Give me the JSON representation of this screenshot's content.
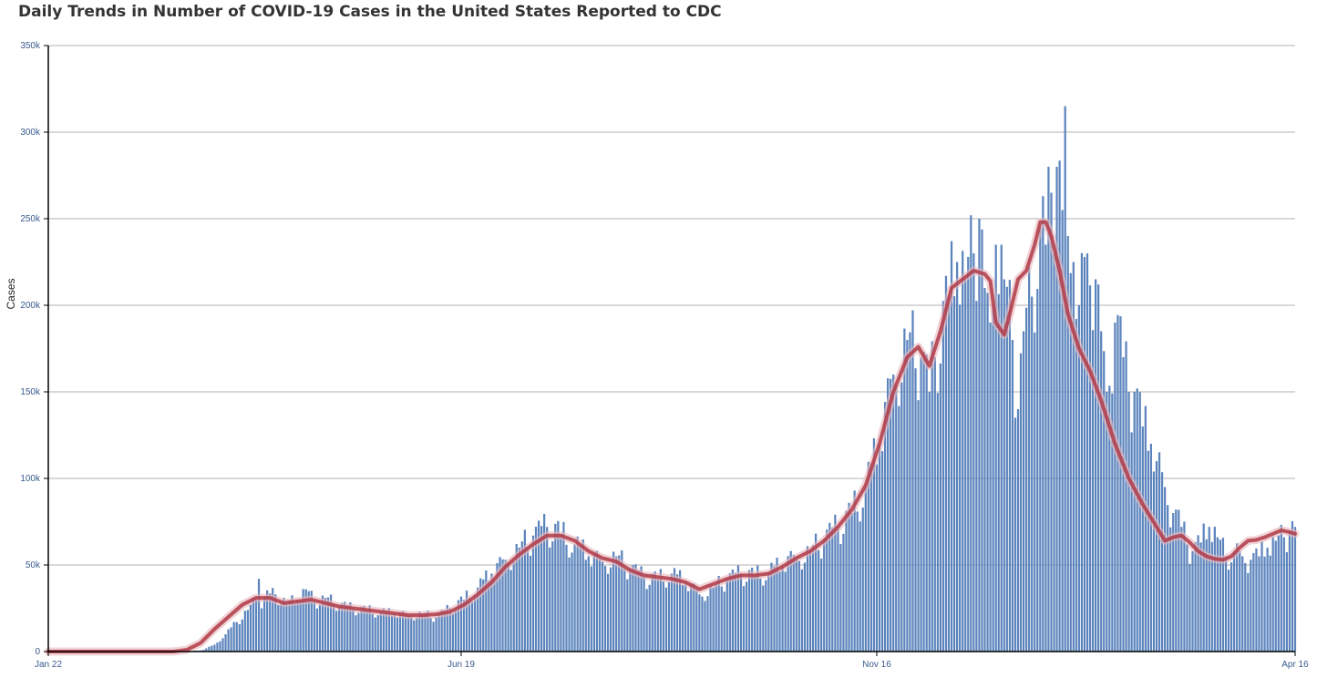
{
  "chart_data": {
    "type": "bar",
    "title": "Daily Trends in Number of COVID-19 Cases in the United States Reported to CDC",
    "ylabel": "Cases",
    "xlabel": "",
    "ylim": [
      0,
      350000
    ],
    "y_ticks": [
      {
        "value": 0,
        "label": "0"
      },
      {
        "value": 50000,
        "label": "50k"
      },
      {
        "value": 100000,
        "label": "100k"
      },
      {
        "value": 150000,
        "label": "150k"
      },
      {
        "value": 200000,
        "label": "200k"
      },
      {
        "value": 250000,
        "label": "250k"
      },
      {
        "value": 300000,
        "label": "300k"
      },
      {
        "value": 350000,
        "label": "350k"
      }
    ],
    "x_ticks": [
      {
        "day": 0,
        "label": "Jan 22"
      },
      {
        "day": 149,
        "label": "Jun 19"
      },
      {
        "day": 299,
        "label": "Nov 16"
      },
      {
        "day": 450,
        "label": "Apr 16"
      }
    ],
    "x_range_days": [
      0,
      450
    ],
    "grid": true,
    "bar_color": "#5b84bd",
    "line_color": "#b03a48",
    "series": [
      {
        "name": "",
        "kind": "bar"
      },
      {
        "name": "",
        "kind": "line"
      }
    ],
    "daily_anchor_points": [
      [
        0,
        0
      ],
      [
        40,
        0
      ],
      [
        52,
        200
      ],
      [
        56,
        1000
      ],
      [
        60,
        4000
      ],
      [
        64,
        10000
      ],
      [
        68,
        17000
      ],
      [
        72,
        24000
      ],
      [
        75,
        30000
      ],
      [
        76,
        42000
      ],
      [
        77,
        25000
      ],
      [
        78,
        32000
      ],
      [
        82,
        33000
      ],
      [
        86,
        28000
      ],
      [
        90,
        30000
      ],
      [
        93,
        36000
      ],
      [
        96,
        29000
      ],
      [
        100,
        31000
      ],
      [
        105,
        27000
      ],
      [
        110,
        25000
      ],
      [
        115,
        24000
      ],
      [
        120,
        23000
      ],
      [
        125,
        22000
      ],
      [
        130,
        21000
      ],
      [
        135,
        22000
      ],
      [
        140,
        20000
      ],
      [
        145,
        25000
      ],
      [
        150,
        30000
      ],
      [
        155,
        37000
      ],
      [
        160,
        45000
      ],
      [
        165,
        53000
      ],
      [
        170,
        60000
      ],
      [
        175,
        67000
      ],
      [
        180,
        72000
      ],
      [
        185,
        68000
      ],
      [
        190,
        62000
      ],
      [
        195,
        55000
      ],
      [
        200,
        52000
      ],
      [
        205,
        55000
      ],
      [
        210,
        48000
      ],
      [
        215,
        43000
      ],
      [
        220,
        42000
      ],
      [
        225,
        45000
      ],
      [
        230,
        40000
      ],
      [
        235,
        33000
      ],
      [
        240,
        37000
      ],
      [
        245,
        42000
      ],
      [
        250,
        45000
      ],
      [
        255,
        44000
      ],
      [
        260,
        46000
      ],
      [
        265,
        50000
      ],
      [
        270,
        55000
      ],
      [
        275,
        58000
      ],
      [
        280,
        65000
      ],
      [
        285,
        72000
      ],
      [
        290,
        80000
      ],
      [
        295,
        95000
      ],
      [
        300,
        120000
      ],
      [
        305,
        160000
      ],
      [
        310,
        180000
      ],
      [
        315,
        170000
      ],
      [
        318,
        150000
      ],
      [
        320,
        170000
      ],
      [
        325,
        205000
      ],
      [
        328,
        225000
      ],
      [
        331,
        215000
      ],
      [
        334,
        230000
      ],
      [
        336,
        250000
      ],
      [
        338,
        210000
      ],
      [
        340,
        190000
      ],
      [
        342,
        235000
      ],
      [
        345,
        215000
      ],
      [
        348,
        180000
      ],
      [
        350,
        140000
      ],
      [
        352,
        185000
      ],
      [
        355,
        205000
      ],
      [
        358,
        245000
      ],
      [
        360,
        235000
      ],
      [
        362,
        265000
      ],
      [
        364,
        280000
      ],
      [
        366,
        255000
      ],
      [
        367,
        315000
      ],
      [
        368,
        240000
      ],
      [
        370,
        225000
      ],
      [
        372,
        200000
      ],
      [
        375,
        230000
      ],
      [
        378,
        215000
      ],
      [
        380,
        185000
      ],
      [
        382,
        150000
      ],
      [
        385,
        190000
      ],
      [
        388,
        170000
      ],
      [
        390,
        150000
      ],
      [
        392,
        150000
      ],
      [
        395,
        130000
      ],
      [
        398,
        120000
      ],
      [
        400,
        110000
      ],
      [
        403,
        95000
      ],
      [
        406,
        80000
      ],
      [
        409,
        72000
      ],
      [
        411,
        62000
      ],
      [
        413,
        58000
      ],
      [
        416,
        63000
      ],
      [
        419,
        72000
      ],
      [
        422,
        66000
      ],
      [
        425,
        55000
      ],
      [
        428,
        58000
      ],
      [
        431,
        55000
      ],
      [
        434,
        53000
      ],
      [
        437,
        55000
      ],
      [
        440,
        60000
      ],
      [
        443,
        64000
      ],
      [
        446,
        66000
      ],
      [
        448,
        70000
      ],
      [
        450,
        72000
      ]
    ],
    "average_anchor_points": [
      [
        0,
        0
      ],
      [
        45,
        0
      ],
      [
        50,
        1000
      ],
      [
        55,
        5000
      ],
      [
        60,
        13000
      ],
      [
        65,
        20000
      ],
      [
        70,
        27000
      ],
      [
        75,
        31000
      ],
      [
        80,
        31000
      ],
      [
        85,
        28000
      ],
      [
        90,
        29000
      ],
      [
        95,
        30000
      ],
      [
        100,
        28000
      ],
      [
        105,
        26000
      ],
      [
        110,
        25000
      ],
      [
        115,
        24000
      ],
      [
        120,
        23000
      ],
      [
        125,
        22000
      ],
      [
        130,
        21000
      ],
      [
        135,
        21000
      ],
      [
        140,
        21500
      ],
      [
        145,
        23000
      ],
      [
        150,
        27000
      ],
      [
        155,
        33000
      ],
      [
        160,
        40000
      ],
      [
        165,
        49000
      ],
      [
        170,
        56000
      ],
      [
        175,
        62000
      ],
      [
        180,
        67000
      ],
      [
        185,
        67000
      ],
      [
        190,
        64000
      ],
      [
        195,
        58000
      ],
      [
        200,
        54000
      ],
      [
        205,
        52000
      ],
      [
        210,
        47000
      ],
      [
        215,
        44000
      ],
      [
        220,
        43000
      ],
      [
        225,
        42000
      ],
      [
        230,
        40000
      ],
      [
        235,
        36000
      ],
      [
        240,
        39000
      ],
      [
        245,
        42000
      ],
      [
        250,
        44000
      ],
      [
        255,
        44000
      ],
      [
        260,
        45000
      ],
      [
        265,
        49000
      ],
      [
        270,
        54000
      ],
      [
        275,
        58000
      ],
      [
        280,
        64000
      ],
      [
        285,
        72000
      ],
      [
        290,
        82000
      ],
      [
        295,
        96000
      ],
      [
        300,
        120000
      ],
      [
        305,
        150000
      ],
      [
        310,
        170000
      ],
      [
        314,
        176000
      ],
      [
        318,
        165000
      ],
      [
        322,
        185000
      ],
      [
        326,
        210000
      ],
      [
        330,
        215000
      ],
      [
        334,
        220000
      ],
      [
        338,
        218000
      ],
      [
        340,
        214000
      ],
      [
        342,
        190000
      ],
      [
        345,
        183000
      ],
      [
        347,
        195000
      ],
      [
        350,
        215000
      ],
      [
        353,
        220000
      ],
      [
        356,
        235000
      ],
      [
        358,
        248000
      ],
      [
        360,
        248000
      ],
      [
        362,
        240000
      ],
      [
        365,
        220000
      ],
      [
        368,
        195000
      ],
      [
        372,
        175000
      ],
      [
        376,
        162000
      ],
      [
        380,
        145000
      ],
      [
        385,
        120000
      ],
      [
        390,
        100000
      ],
      [
        395,
        85000
      ],
      [
        400,
        72000
      ],
      [
        403,
        64000
      ],
      [
        406,
        66000
      ],
      [
        409,
        67000
      ],
      [
        412,
        63000
      ],
      [
        415,
        58000
      ],
      [
        418,
        55000
      ],
      [
        421,
        53500
      ],
      [
        424,
        53000
      ],
      [
        427,
        55000
      ],
      [
        430,
        60000
      ],
      [
        433,
        64000
      ],
      [
        436,
        64500
      ],
      [
        439,
        66000
      ],
      [
        442,
        68000
      ],
      [
        445,
        70000
      ],
      [
        448,
        69000
      ],
      [
        450,
        68000
      ]
    ],
    "daily_variation_amplitude": 0.12
  }
}
